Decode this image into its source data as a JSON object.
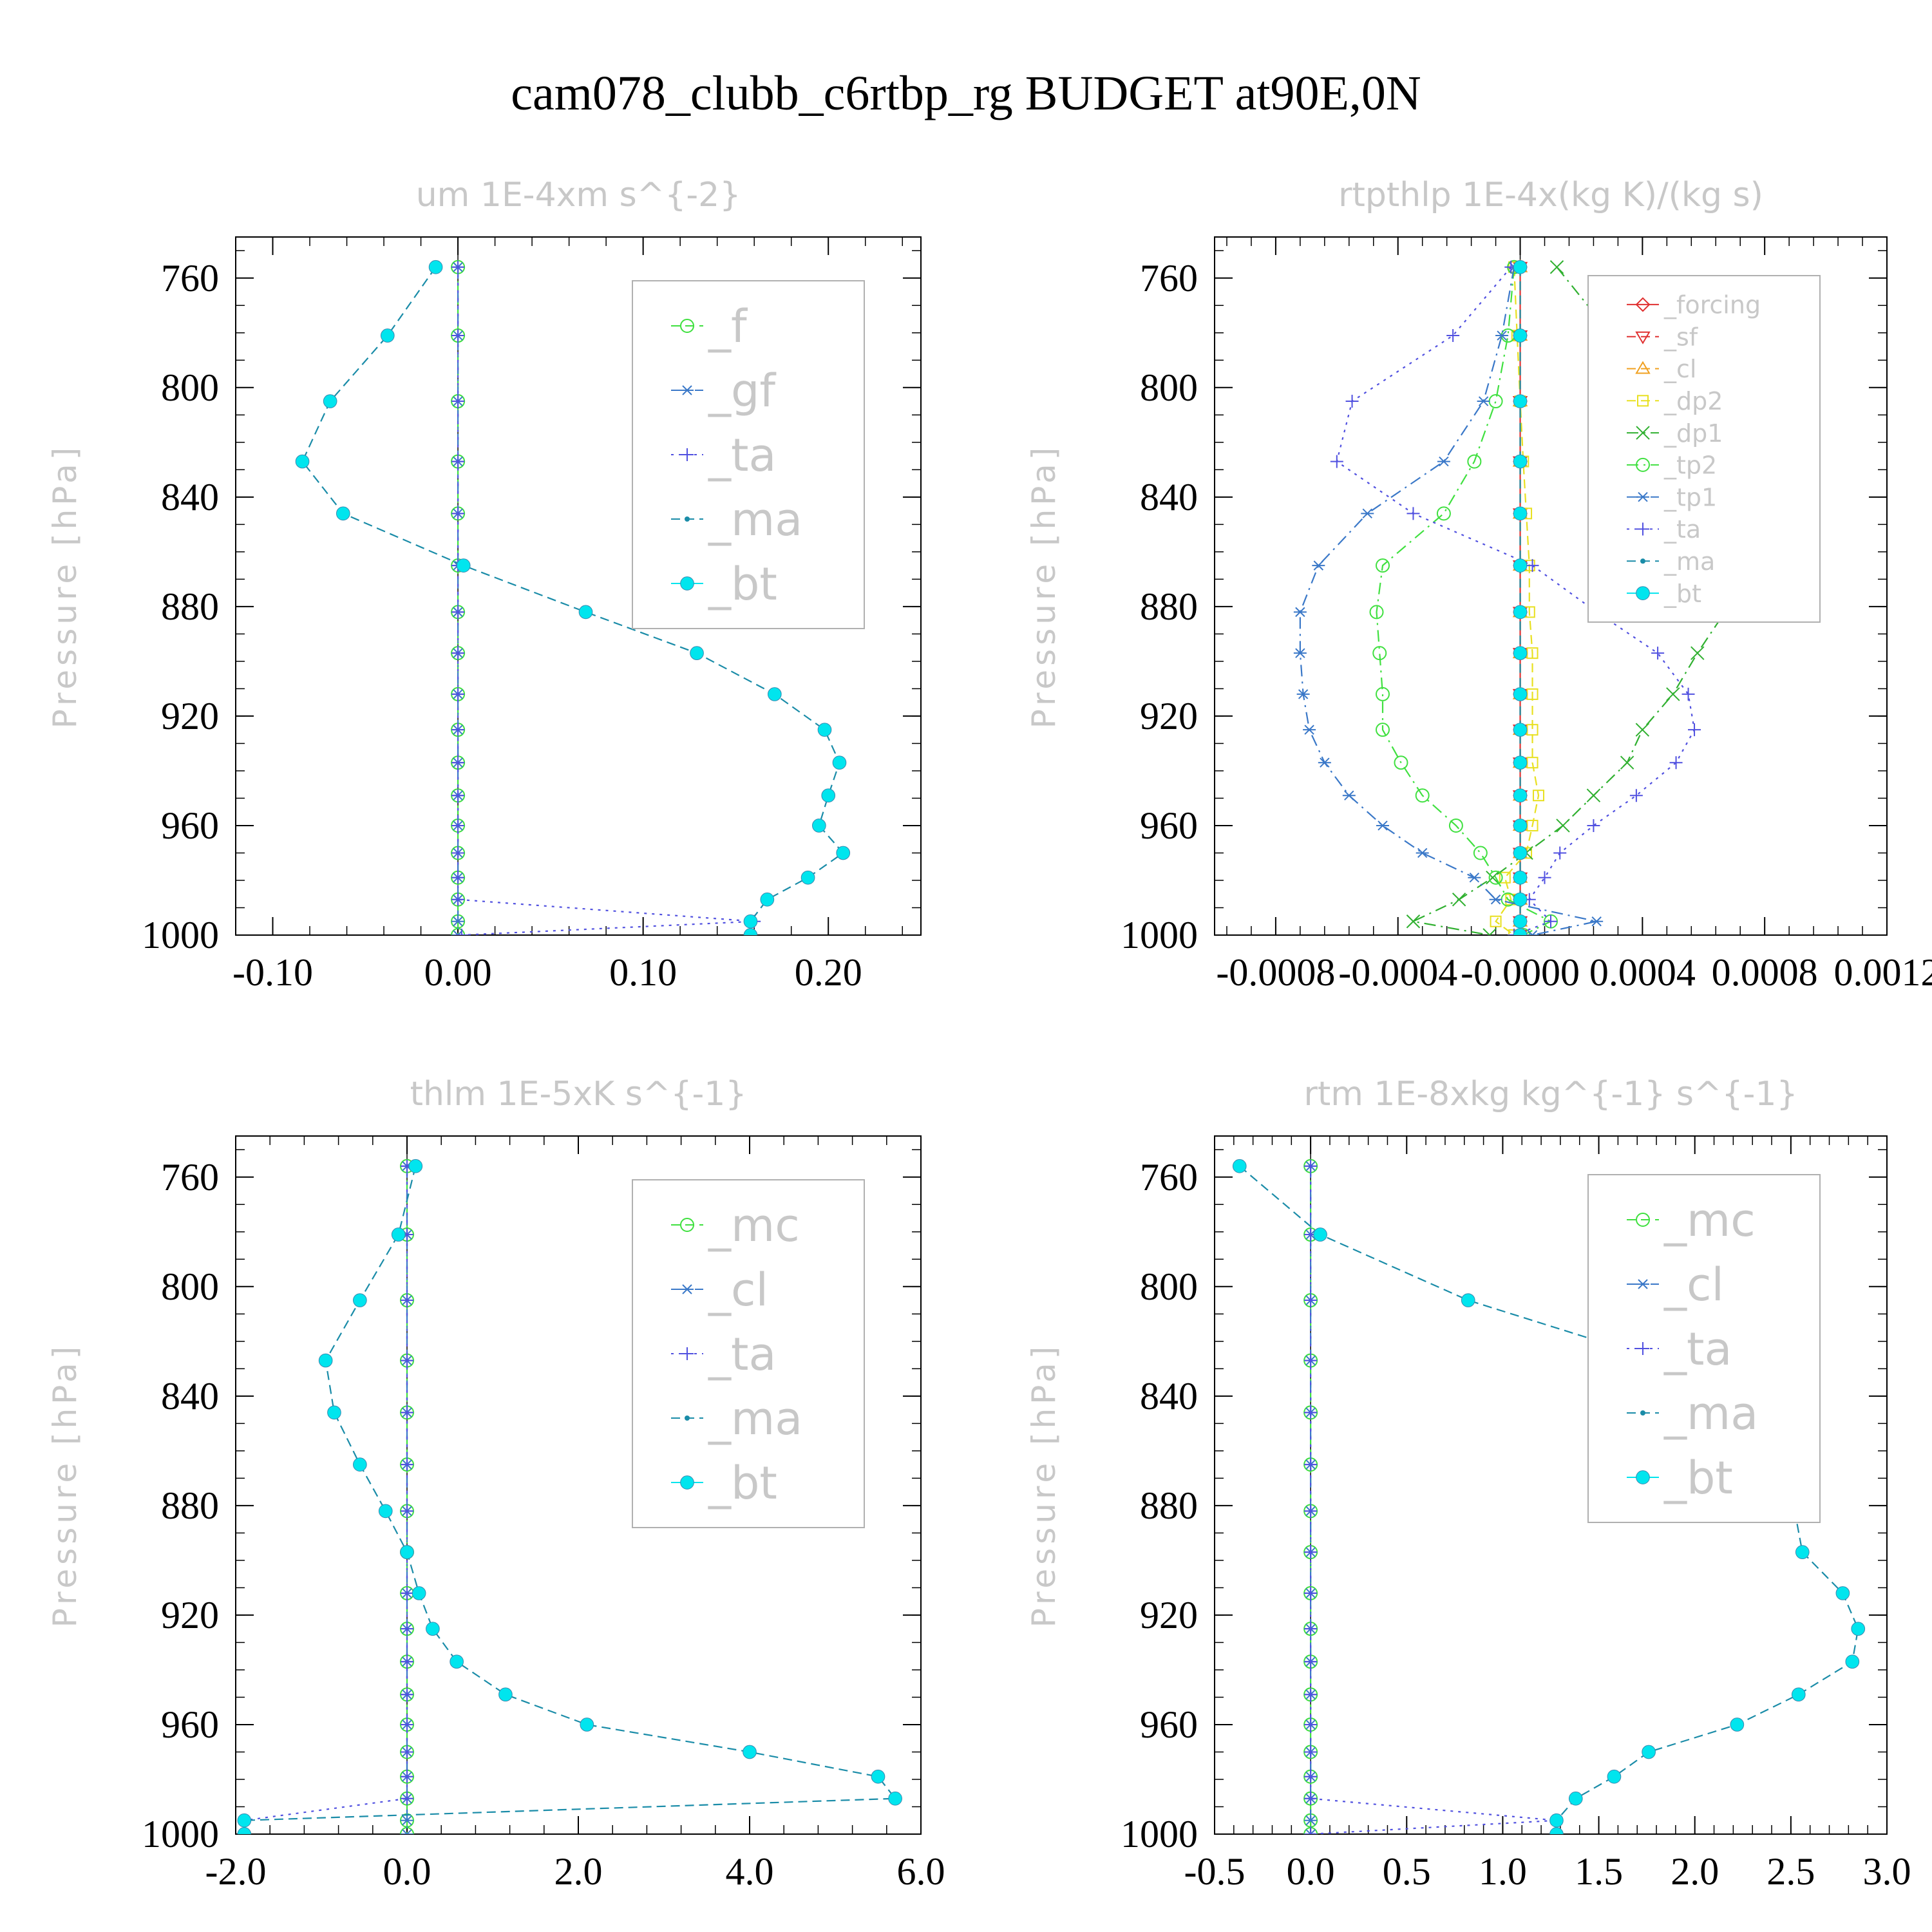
{
  "figure_title": "cam078_clubb_c6rtbp_rg  BUDGET at90E,0N",
  "y_axis_label": "Pressure [hPa]",
  "chart_data": [
    {
      "type": "line",
      "title": "um   1E-4xm s^{-2}",
      "ylabel": "Pressure [hPa]",
      "y_inverted": true,
      "ylim": [
        745,
        1000
      ],
      "xlim": [
        -0.12,
        0.25
      ],
      "xticks": [
        "-0.10",
        "0.00",
        "0.10",
        "0.20"
      ],
      "xtick_values": [
        -0.1,
        0.0,
        0.1,
        0.2
      ],
      "yticks": [
        "760",
        "800",
        "840",
        "880",
        "920",
        "960",
        "1000"
      ],
      "ytick_values": [
        760,
        800,
        840,
        880,
        920,
        960,
        1000
      ],
      "pressure": [
        756,
        781,
        805,
        827,
        846,
        865,
        882,
        897,
        912,
        925,
        937,
        949,
        960,
        970,
        979,
        987,
        995,
        1000
      ],
      "legend": {
        "position": "top-right",
        "font_size": 70
      },
      "series": [
        {
          "name": "_f",
          "color": "#3ee03e",
          "marker": "circle",
          "dash": "dashed",
          "x": [
            0,
            0,
            0,
            0,
            0,
            0,
            0,
            0,
            0,
            0,
            0,
            0,
            0,
            0,
            0,
            0,
            0,
            0
          ]
        },
        {
          "name": "_gf",
          "color": "#3a78c8",
          "marker": "asterisk",
          "dash": "dashdot",
          "x": [
            0,
            0,
            0,
            0,
            0,
            0,
            0,
            0,
            0,
            0,
            0,
            0,
            0,
            0,
            0,
            0,
            0,
            0
          ]
        },
        {
          "name": "_ta",
          "color": "#5050e0",
          "marker": "plus",
          "dash": "dotted",
          "x": [
            0,
            0,
            0,
            0,
            0,
            0,
            0,
            0,
            0,
            0,
            0,
            0,
            0,
            0,
            0,
            0,
            0.16,
            0.002
          ]
        },
        {
          "name": "_ma",
          "color": "#1a8ca8",
          "marker": "dot",
          "dash": "dashed",
          "x": [
            -0.012,
            -0.038,
            -0.069,
            -0.084,
            -0.062,
            0.003,
            0.069,
            0.129,
            0.171,
            0.198,
            0.206,
            0.2,
            0.195,
            0.208,
            0.189,
            0.167,
            0.158,
            0.158
          ]
        },
        {
          "name": "_bt",
          "color": "#00e5ee",
          "marker": "filled-circle",
          "dash": "none",
          "x": [
            -0.012,
            -0.038,
            -0.069,
            -0.084,
            -0.062,
            0.003,
            0.069,
            0.129,
            0.171,
            0.198,
            0.206,
            0.2,
            0.195,
            0.208,
            0.189,
            0.167,
            0.158,
            0.158
          ]
        }
      ]
    },
    {
      "type": "line",
      "title": "rtpthlp   1E-4x(kg K)/(kg s)",
      "ylabel": "Pressure [hPa]",
      "y_inverted": true,
      "ylim": [
        745,
        1000
      ],
      "xlim": [
        -0.001,
        0.0012
      ],
      "xticks": [
        "-0.0008",
        "-0.0004",
        "-0.0000",
        "0.0004",
        "0.0008",
        "0.0012"
      ],
      "xtick_values": [
        -0.0008,
        -0.0004,
        0.0,
        0.0004,
        0.0008,
        0.0012
      ],
      "yticks": [
        "760",
        "800",
        "840",
        "880",
        "920",
        "960",
        "1000"
      ],
      "ytick_values": [
        760,
        800,
        840,
        880,
        920,
        960,
        1000
      ],
      "pressure": [
        756,
        781,
        805,
        827,
        846,
        865,
        882,
        897,
        912,
        925,
        937,
        949,
        960,
        970,
        979,
        987,
        995,
        1000
      ],
      "legend": {
        "position": "top-right",
        "font_size": 38
      },
      "series": [
        {
          "name": "_forcing",
          "color": "#e03030",
          "marker": "diamond",
          "dash": "solid",
          "x": [
            0,
            0,
            0,
            0,
            0,
            0,
            0,
            0,
            0,
            0,
            0,
            0,
            0,
            0,
            0,
            0,
            0,
            0
          ]
        },
        {
          "name": "_sf",
          "color": "#e03030",
          "marker": "triangle-down",
          "dash": "dashed",
          "x": [
            0,
            0,
            0,
            0,
            0,
            0,
            0,
            0,
            0,
            0,
            0,
            0,
            0,
            0,
            0,
            0,
            0,
            0
          ]
        },
        {
          "name": "_cl",
          "color": "#f0a020",
          "marker": "triangle-up",
          "dash": "dashed",
          "x": [
            0,
            0,
            0,
            0,
            0,
            0,
            0,
            0,
            0,
            0,
            0,
            0,
            0,
            0,
            0,
            0,
            0,
            0
          ]
        },
        {
          "name": "_dp2",
          "color": "#e8e020",
          "marker": "square",
          "dash": "dashed",
          "x": [
            -2e-05,
            -1e-05,
            0,
            1e-05,
            2e-05,
            3e-05,
            3e-05,
            4e-05,
            4e-05,
            4e-05,
            4e-05,
            6e-05,
            4e-05,
            2e-05,
            -5e-05,
            -3e-05,
            -8e-05,
            -2e-05
          ]
        },
        {
          "name": "_dp1",
          "color": "#30b030",
          "marker": "x",
          "dash": "dashdot",
          "x": [
            0.00012,
            0.0003,
            0.00052,
            0.00077,
            0.0009,
            0.00084,
            0.00067,
            0.00058,
            0.0005,
            0.0004,
            0.00035,
            0.00024,
            0.00014,
            2e-05,
            -9e-05,
            -0.0002,
            -0.00035,
            -0.0001
          ]
        },
        {
          "name": "_tp2",
          "color": "#40e040",
          "marker": "circle",
          "dash": "dashdot",
          "x": [
            -2e-05,
            -4e-05,
            -8e-05,
            -0.00015,
            -0.00025,
            -0.00045,
            -0.00047,
            -0.00046,
            -0.00045,
            -0.00045,
            -0.00039,
            -0.00032,
            -0.00021,
            -0.00013,
            -8e-05,
            -4e-05,
            0.0001,
            1e-05
          ]
        },
        {
          "name": "_tp1",
          "color": "#3a78c8",
          "marker": "asterisk",
          "dash": "dashdot",
          "x": [
            -2e-05,
            -6e-05,
            -0.00012,
            -0.00025,
            -0.0005,
            -0.00066,
            -0.00072,
            -0.00072,
            -0.00071,
            -0.00069,
            -0.00064,
            -0.00056,
            -0.00045,
            -0.00032,
            -0.00015,
            -8e-05,
            0.00025,
            4e-05
          ]
        },
        {
          "name": "_ta",
          "color": "#5050e0",
          "marker": "plus",
          "dash": "dotted",
          "x": [
            -3e-05,
            -0.00022,
            -0.00055,
            -0.0006,
            -0.00035,
            4e-05,
            0.00025,
            0.00045,
            0.00055,
            0.00057,
            0.00051,
            0.00038,
            0.00024,
            0.00013,
            8e-05,
            3e-05,
            0.0001,
            -2e-05
          ]
        },
        {
          "name": "_ma",
          "color": "#1a8ca8",
          "marker": "dot",
          "dash": "dashed",
          "x": [
            0,
            0,
            0,
            0,
            0,
            0,
            0,
            0,
            0,
            0,
            0,
            0,
            0,
            0,
            0,
            0,
            0,
            0
          ]
        },
        {
          "name": "_bt",
          "color": "#00e5ee",
          "marker": "filled-circle",
          "dash": "none",
          "x": [
            0,
            0,
            0,
            0,
            0,
            0,
            0,
            0,
            0,
            0,
            0,
            0,
            0,
            0,
            0,
            0,
            0,
            0
          ]
        }
      ]
    },
    {
      "type": "line",
      "title": "thlm   1E-5xK s^{-1}",
      "ylabel": "Pressure [hPa]",
      "y_inverted": true,
      "ylim": [
        745,
        1000
      ],
      "xlim": [
        -2.0,
        6.0
      ],
      "xticks": [
        "-2.0",
        "0.0",
        "2.0",
        "4.0",
        "6.0"
      ],
      "xtick_values": [
        -2.0,
        0.0,
        2.0,
        4.0,
        6.0
      ],
      "yticks": [
        "760",
        "800",
        "840",
        "880",
        "920",
        "960",
        "1000"
      ],
      "ytick_values": [
        760,
        800,
        840,
        880,
        920,
        960,
        1000
      ],
      "pressure": [
        756,
        781,
        805,
        827,
        846,
        865,
        882,
        897,
        912,
        925,
        937,
        949,
        960,
        970,
        979,
        987,
        995,
        1000
      ],
      "legend": {
        "position": "top-right",
        "font_size": 70
      },
      "series": [
        {
          "name": "_mc",
          "color": "#3ee03e",
          "marker": "circle",
          "dash": "dashed",
          "x": [
            0,
            0,
            0,
            0,
            0,
            0,
            0,
            0,
            0,
            0,
            0,
            0,
            0,
            0,
            0,
            0,
            0,
            0
          ]
        },
        {
          "name": "_cl",
          "color": "#3a78c8",
          "marker": "asterisk",
          "dash": "dashdot",
          "x": [
            0,
            0,
            0,
            0,
            0,
            0,
            0,
            0,
            0,
            0,
            0,
            0,
            0,
            0,
            0,
            0,
            0,
            0
          ]
        },
        {
          "name": "_ta",
          "color": "#5050e0",
          "marker": "plus",
          "dash": "dotted",
          "x": [
            0,
            0,
            0,
            0,
            0,
            0,
            0,
            0,
            0,
            0,
            0,
            0,
            0,
            0,
            0,
            0,
            -1.9,
            -1.9
          ]
        },
        {
          "name": "_ma",
          "color": "#1a8ca8",
          "marker": "dot",
          "dash": "dashed",
          "x": [
            0.1,
            -0.1,
            -0.55,
            -0.95,
            -0.85,
            -0.55,
            -0.25,
            0.0,
            0.14,
            0.3,
            0.58,
            1.15,
            2.1,
            4.0,
            5.5,
            5.7,
            -1.9,
            -1.9
          ]
        },
        {
          "name": "_bt",
          "color": "#00e5ee",
          "marker": "filled-circle",
          "dash": "none",
          "x": [
            0.1,
            -0.1,
            -0.55,
            -0.95,
            -0.85,
            -0.55,
            -0.25,
            0.0,
            0.14,
            0.3,
            0.58,
            1.15,
            2.1,
            4.0,
            5.5,
            5.7,
            -1.9,
            -1.9
          ]
        }
      ]
    },
    {
      "type": "line",
      "title": "rtm   1E-8xkg kg^{-1} s^{-1}",
      "ylabel": "Pressure [hPa]",
      "y_inverted": true,
      "ylim": [
        745,
        1000
      ],
      "xlim": [
        -0.5,
        3.0
      ],
      "xticks": [
        "-0.5",
        "0.0",
        "0.5",
        "1.0",
        "1.5",
        "2.0",
        "2.5",
        "3.0"
      ],
      "xtick_values": [
        -0.5,
        0.0,
        0.5,
        1.0,
        1.5,
        2.0,
        2.5,
        3.0
      ],
      "yticks": [
        "760",
        "800",
        "840",
        "880",
        "920",
        "960",
        "1000"
      ],
      "ytick_values": [
        760,
        800,
        840,
        880,
        920,
        960,
        1000
      ],
      "pressure": [
        756,
        781,
        805,
        827,
        846,
        865,
        882,
        897,
        912,
        925,
        937,
        949,
        960,
        970,
        979,
        987,
        995,
        1000
      ],
      "legend": {
        "position": "top-right",
        "font_size": 70
      },
      "series": [
        {
          "name": "_mc",
          "color": "#3ee03e",
          "marker": "circle",
          "dash": "dashed",
          "x": [
            0,
            0,
            0,
            0,
            0,
            0,
            0,
            0,
            0,
            0,
            0,
            0,
            0,
            0,
            0,
            0,
            0,
            0
          ]
        },
        {
          "name": "_cl",
          "color": "#3a78c8",
          "marker": "asterisk",
          "dash": "dashdot",
          "x": [
            0,
            0,
            0,
            0,
            0,
            0,
            0,
            0,
            0,
            0,
            0,
            0,
            0,
            0,
            0,
            0,
            0,
            0
          ]
        },
        {
          "name": "_ta",
          "color": "#5050e0",
          "marker": "plus",
          "dash": "dotted",
          "x": [
            0,
            0,
            0,
            0,
            0,
            0,
            0,
            0,
            0,
            0,
            0,
            0,
            0,
            0,
            0,
            0,
            1.28,
            0.0
          ]
        },
        {
          "name": "_ma",
          "color": "#1a8ca8",
          "marker": "dot",
          "dash": "dashed",
          "x": [
            -0.37,
            0.05,
            0.82,
            1.82,
            2.29,
            2.42,
            2.52,
            2.56,
            2.77,
            2.85,
            2.82,
            2.54,
            2.22,
            1.76,
            1.58,
            1.38,
            1.28,
            1.28
          ]
        },
        {
          "name": "_bt",
          "color": "#00e5ee",
          "marker": "filled-circle",
          "dash": "none",
          "x": [
            -0.37,
            0.05,
            0.82,
            1.82,
            2.29,
            2.42,
            2.52,
            2.56,
            2.77,
            2.85,
            2.82,
            2.54,
            2.22,
            1.76,
            1.58,
            1.38,
            1.28,
            1.28
          ]
        }
      ]
    }
  ]
}
